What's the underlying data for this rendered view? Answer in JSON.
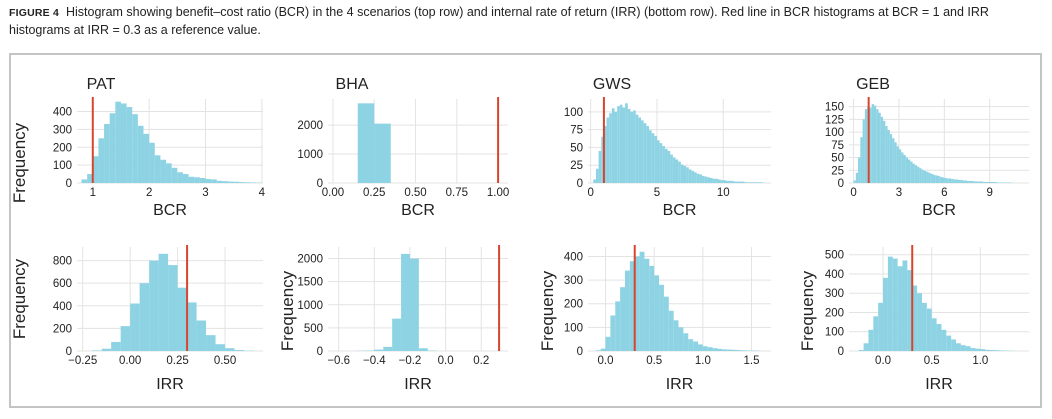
{
  "caption": {
    "label": "FIGURE 4",
    "text": "Histogram showing benefit–cost ratio (BCR) in the 4 scenarios (top row) and internal rate of return (IRR) (bottom row). Red line in BCR histograms at BCR = 1 and IRR histograms at IRR = 0.3 as a reference value."
  },
  "colors": {
    "bar": "#8dd3e3",
    "reference_line": "#d8452d",
    "grid": "#e3e3e3",
    "text": "#222222"
  },
  "shared_y_label": "Frequency",
  "chart_data": [
    {
      "type": "bar",
      "title": "PAT",
      "xlabel": "BCR",
      "ylabel": "",
      "xlim": [
        0.72,
        4.02
      ],
      "ylim": [
        0,
        470
      ],
      "xticks": [
        1,
        2,
        3,
        4
      ],
      "xtick_labels": [
        "1",
        "2",
        "3",
        "4"
      ],
      "yticks": [
        0,
        100,
        200,
        300,
        400
      ],
      "ytick_labels": [
        "0",
        "100",
        "200",
        "300",
        "400"
      ],
      "reference_line": 1,
      "bins": [
        0.8,
        0.9,
        1.0,
        1.1,
        1.2,
        1.3,
        1.4,
        1.5,
        1.6,
        1.7,
        1.8,
        1.9,
        2.0,
        2.1,
        2.2,
        2.3,
        2.4,
        2.5,
        2.6,
        2.7,
        2.8,
        2.9,
        3.0,
        3.1,
        3.2,
        3.3,
        3.4,
        3.5,
        3.6,
        3.7,
        3.8,
        3.9
      ],
      "bin_width": 0.1,
      "values": [
        20,
        50,
        150,
        250,
        330,
        390,
        455,
        445,
        425,
        385,
        320,
        275,
        225,
        155,
        130,
        110,
        85,
        60,
        50,
        35,
        32,
        28,
        22,
        20,
        12,
        10,
        8,
        7,
        5,
        4,
        3,
        2
      ]
    },
    {
      "type": "bar",
      "title": "BHA",
      "xlabel": "BCR",
      "ylabel": "",
      "xlim": [
        -0.03,
        1.06
      ],
      "ylim": [
        0,
        2900
      ],
      "xticks": [
        0,
        0.25,
        0.5,
        0.75,
        1.0
      ],
      "xtick_labels": [
        "0.00",
        "0.25",
        "0.50",
        "0.75",
        "1.00"
      ],
      "yticks": [
        0,
        1000,
        2000
      ],
      "ytick_labels": [
        "0",
        "1000",
        "2000"
      ],
      "reference_line": 1,
      "bins": [
        0.15,
        0.25
      ],
      "bin_width": 0.1,
      "values": [
        2750,
        2050
      ]
    },
    {
      "type": "bar",
      "title": "GWS",
      "xlabel": "BCR",
      "ylabel": "",
      "xlim": [
        -0.2,
        13.6
      ],
      "ylim": [
        0,
        118
      ],
      "xticks": [
        0,
        5,
        10
      ],
      "xtick_labels": [
        "0",
        "5",
        "10"
      ],
      "yticks": [
        0,
        25,
        50,
        75,
        100
      ],
      "ytick_labels": [
        "0",
        "25",
        "50",
        "75",
        "100"
      ],
      "reference_line": 1,
      "bins": [
        0.2,
        0.4,
        0.6,
        0.8,
        1.0,
        1.2,
        1.4,
        1.6,
        1.8,
        2.0,
        2.2,
        2.4,
        2.6,
        2.8,
        3.0,
        3.2,
        3.4,
        3.6,
        3.8,
        4.0,
        4.2,
        4.4,
        4.6,
        4.8,
        5.0,
        5.2,
        5.4,
        5.6,
        5.8,
        6.0,
        6.2,
        6.4,
        6.6,
        6.8,
        7.0,
        7.2,
        7.4,
        7.6,
        7.8,
        8.0,
        8.2,
        8.4,
        8.6,
        8.8,
        9.0,
        9.2,
        9.4,
        9.6,
        9.8,
        10.0,
        10.2,
        10.4,
        10.6,
        10.8,
        11.0,
        11.2,
        11.4,
        11.6,
        11.8,
        12.0,
        12.2,
        12.4,
        12.6,
        12.8
      ],
      "bin_width": 0.2,
      "values": [
        5,
        20,
        45,
        65,
        80,
        92,
        98,
        105,
        100,
        108,
        110,
        106,
        112,
        104,
        100,
        102,
        96,
        92,
        88,
        84,
        80,
        74,
        70,
        66,
        60,
        56,
        52,
        48,
        45,
        40,
        36,
        33,
        30,
        26,
        24,
        22,
        19,
        17,
        15,
        13,
        12,
        10,
        9,
        8,
        7,
        6,
        6,
        5,
        4,
        4,
        3,
        3,
        3,
        2,
        2,
        2,
        2,
        1,
        1,
        1,
        1,
        1,
        1,
        1
      ]
    },
    {
      "type": "bar",
      "title": "GEB",
      "xlabel": "BCR",
      "ylabel": "",
      "xlim": [
        -0.3,
        11.6
      ],
      "ylim": [
        0,
        165
      ],
      "xticks": [
        0,
        3,
        6,
        9
      ],
      "xtick_labels": [
        "0",
        "3",
        "6",
        "9"
      ],
      "yticks": [
        0,
        25,
        50,
        75,
        100,
        125,
        150
      ],
      "ytick_labels": [
        "0",
        "25",
        "50",
        "75",
        "100",
        "125",
        "150"
      ],
      "reference_line": 1,
      "bins": [
        0.0,
        0.15,
        0.3,
        0.45,
        0.6,
        0.75,
        0.9,
        1.05,
        1.2,
        1.35,
        1.5,
        1.65,
        1.8,
        1.95,
        2.1,
        2.25,
        2.4,
        2.55,
        2.7,
        2.85,
        3.0,
        3.15,
        3.3,
        3.45,
        3.6,
        3.75,
        3.9,
        4.05,
        4.2,
        4.35,
        4.5,
        4.65,
        4.8,
        4.95,
        5.1,
        5.25,
        5.4,
        5.55,
        5.7,
        5.85,
        6.0,
        6.15,
        6.3,
        6.45,
        6.6,
        6.75,
        6.9,
        7.05,
        7.2,
        7.35,
        7.5,
        7.65,
        7.8,
        7.95,
        8.1,
        8.25,
        8.4,
        8.55,
        8.7,
        8.85,
        9.0,
        9.15,
        9.3,
        9.45,
        9.6,
        9.75,
        9.9,
        10.05,
        10.2,
        10.35
      ],
      "bin_width": 0.15,
      "values": [
        5,
        20,
        50,
        90,
        125,
        145,
        150,
        148,
        155,
        152,
        145,
        138,
        130,
        122,
        112,
        104,
        96,
        88,
        80,
        72,
        66,
        60,
        55,
        50,
        46,
        42,
        38,
        35,
        32,
        29,
        26,
        24,
        22,
        20,
        18,
        16,
        15,
        14,
        12,
        11,
        10,
        9,
        9,
        8,
        7,
        7,
        6,
        6,
        5,
        5,
        4,
        4,
        4,
        3,
        3,
        3,
        3,
        2,
        2,
        2,
        2,
        2,
        2,
        1,
        1,
        1,
        1,
        1,
        1,
        1
      ]
    },
    {
      "type": "bar",
      "title": "",
      "xlabel": "IRR",
      "ylabel": "",
      "xlim": [
        -0.28,
        0.7
      ],
      "ylim": [
        0,
        920
      ],
      "xticks": [
        -0.25,
        0,
        0.25,
        0.5
      ],
      "xtick_labels": [
        "−0.25",
        "0.00",
        "0.25",
        "0.50"
      ],
      "yticks": [
        0,
        200,
        400,
        600,
        800
      ],
      "ytick_labels": [
        "0",
        "200",
        "400",
        "600",
        "800"
      ],
      "reference_line": 0.3,
      "bins": [
        -0.2,
        -0.15,
        -0.1,
        -0.05,
        0.0,
        0.05,
        0.1,
        0.15,
        0.2,
        0.25,
        0.3,
        0.35,
        0.4,
        0.45,
        0.5,
        0.55,
        0.6
      ],
      "bin_width": 0.05,
      "values": [
        5,
        20,
        80,
        220,
        420,
        600,
        800,
        860,
        760,
        560,
        430,
        270,
        140,
        60,
        25,
        8,
        3
      ]
    },
    {
      "type": "bar",
      "title": "",
      "xlabel": "IRR",
      "ylabel": "",
      "xlim": [
        -0.66,
        0.35
      ],
      "ylim": [
        0,
        2250
      ],
      "xticks": [
        -0.6,
        -0.4,
        -0.2,
        0.0,
        0.2
      ],
      "xtick_labels": [
        "−0.6",
        "−0.4",
        "−0.2",
        "0.0",
        "0.2"
      ],
      "yticks": [
        0,
        500,
        1000,
        1500,
        2000
      ],
      "ytick_labels": [
        "0",
        "500",
        "1000",
        "1500",
        "2000"
      ],
      "reference_line": 0.3,
      "bins": [
        -0.5,
        -0.45,
        -0.4,
        -0.35,
        -0.3,
        -0.25,
        -0.2,
        -0.15,
        -0.1
      ],
      "bin_width": 0.05,
      "values": [
        5,
        10,
        30,
        90,
        700,
        2100,
        2000,
        60,
        10
      ]
    },
    {
      "type": "bar",
      "title": "",
      "xlabel": "IRR",
      "ylabel": "",
      "xlim": [
        -0.18,
        1.7
      ],
      "ylim": [
        0,
        440
      ],
      "xticks": [
        0,
        0.5,
        1.0,
        1.5
      ],
      "xtick_labels": [
        "0.0",
        "0.5",
        "1.0",
        "1.5"
      ],
      "yticks": [
        0,
        100,
        200,
        300,
        400
      ],
      "ytick_labels": [
        "0",
        "100",
        "200",
        "300",
        "400"
      ],
      "reference_line": 0.3,
      "bins": [
        -0.1,
        -0.05,
        0.0,
        0.05,
        0.1,
        0.15,
        0.2,
        0.25,
        0.3,
        0.35,
        0.4,
        0.45,
        0.5,
        0.55,
        0.6,
        0.65,
        0.7,
        0.75,
        0.8,
        0.85,
        0.9,
        0.95,
        1.0,
        1.05,
        1.1,
        1.15,
        1.2,
        1.25,
        1.3,
        1.35,
        1.4,
        1.45,
        1.5,
        1.55
      ],
      "bin_width": 0.05,
      "values": [
        3,
        10,
        60,
        150,
        210,
        270,
        340,
        380,
        400,
        420,
        390,
        360,
        320,
        280,
        230,
        170,
        130,
        100,
        75,
        50,
        40,
        28,
        20,
        16,
        12,
        9,
        7,
        6,
        5,
        4,
        3,
        2,
        2,
        1
      ]
    },
    {
      "type": "bar",
      "title": "",
      "xlabel": "IRR",
      "ylabel": "",
      "xlim": [
        -0.35,
        1.5
      ],
      "ylim": [
        0,
        540
      ],
      "xticks": [
        0,
        0.5,
        1.0
      ],
      "xtick_labels": [
        "0.0",
        "0.5",
        "1.0"
      ],
      "yticks": [
        0,
        100,
        200,
        300,
        400,
        500
      ],
      "ytick_labels": [
        "0",
        "100",
        "200",
        "300",
        "400",
        "500"
      ],
      "reference_line": 0.3,
      "bins": [
        -0.25,
        -0.2,
        -0.15,
        -0.1,
        -0.05,
        0.0,
        0.05,
        0.1,
        0.15,
        0.2,
        0.25,
        0.3,
        0.35,
        0.4,
        0.45,
        0.5,
        0.55,
        0.6,
        0.65,
        0.7,
        0.75,
        0.8,
        0.85,
        0.9,
        0.95,
        1.0,
        1.05,
        1.1,
        1.15,
        1.2,
        1.25,
        1.3
      ],
      "bin_width": 0.05,
      "values": [
        5,
        40,
        110,
        180,
        250,
        380,
        490,
        480,
        440,
        470,
        420,
        340,
        300,
        250,
        220,
        170,
        140,
        110,
        80,
        60,
        40,
        30,
        25,
        15,
        12,
        10,
        6,
        5,
        4,
        3,
        2,
        1
      ]
    }
  ]
}
